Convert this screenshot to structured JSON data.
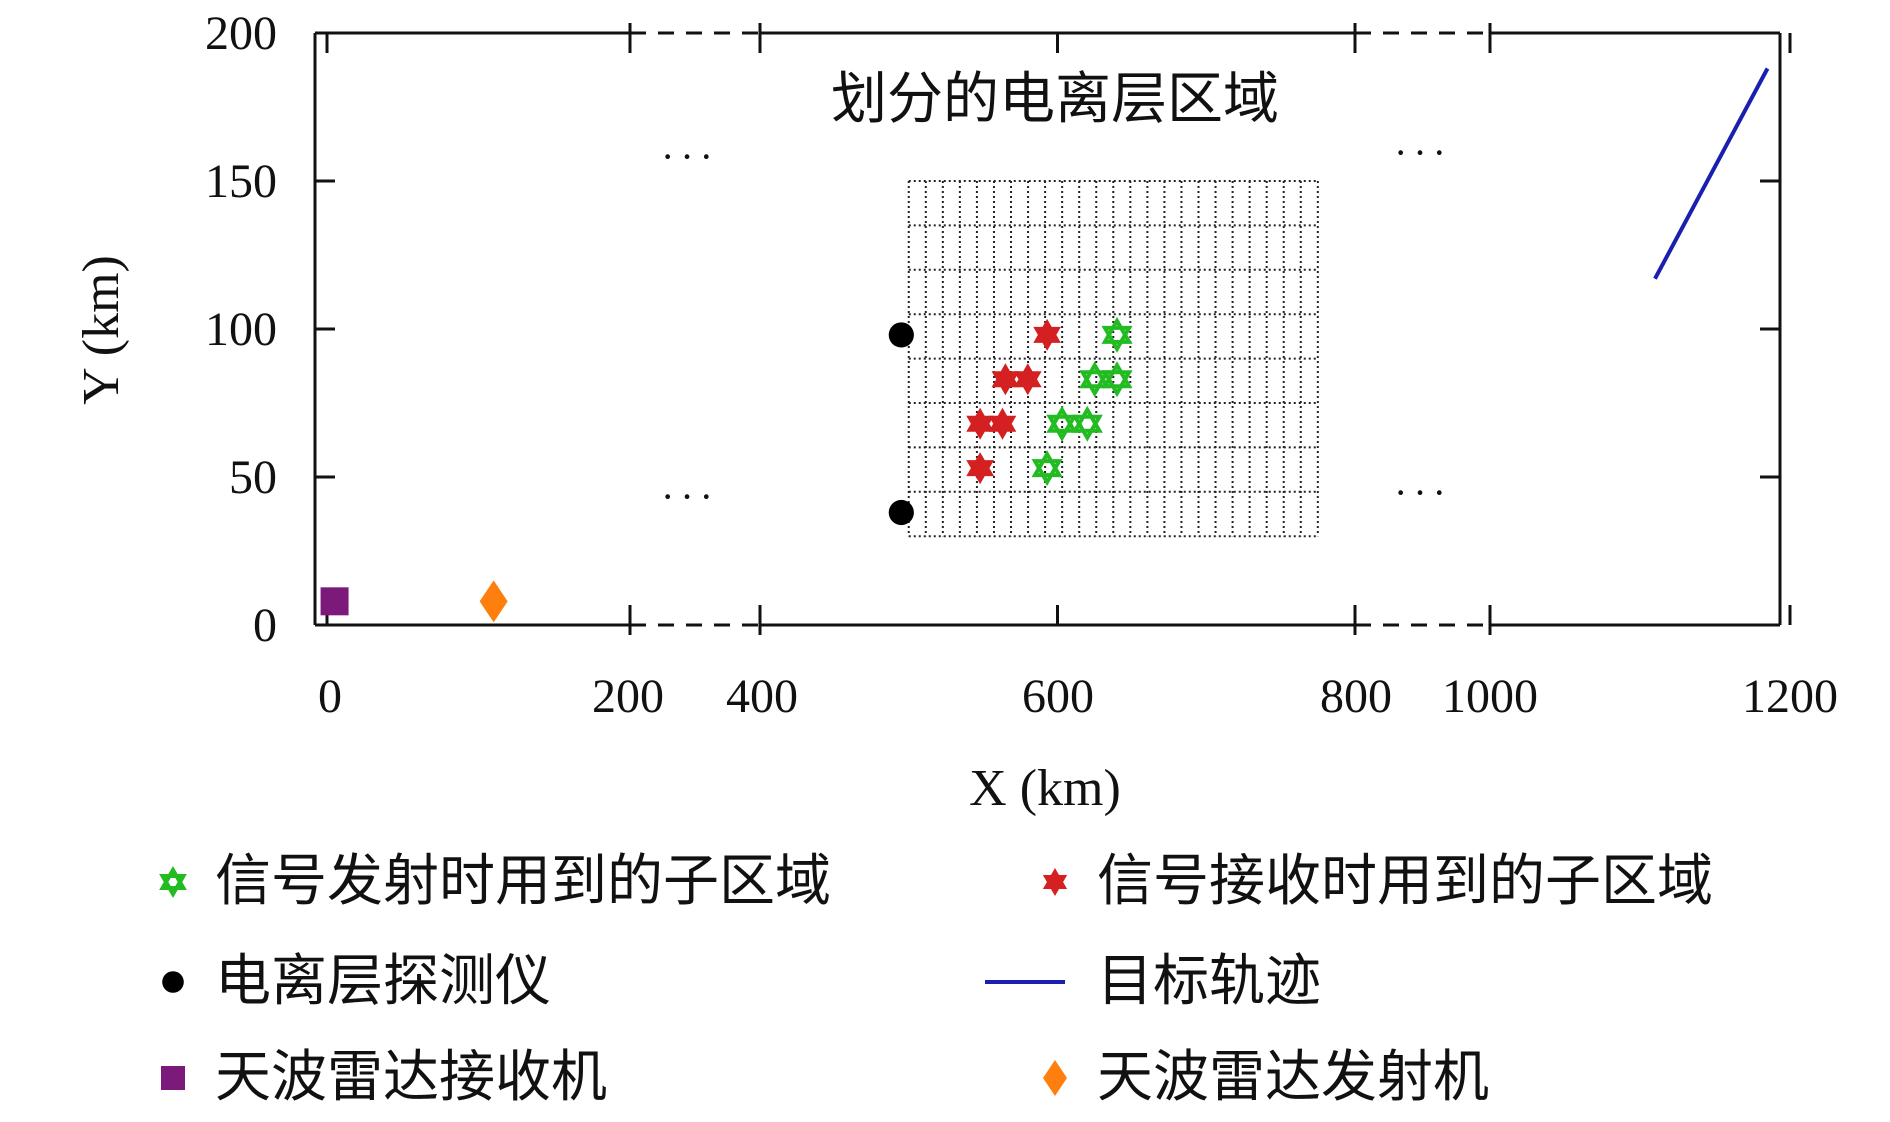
{
  "chart_data": {
    "type": "scatter",
    "title": "",
    "region_title": "划分的电离层区域",
    "xlabel": "X (km)",
    "ylabel": "Y (km)",
    "x_broken_axis": true,
    "x_tick_labels": [
      "0",
      "200",
      "400",
      "600",
      "800",
      "1000",
      "1200"
    ],
    "y_tick_labels": [
      "0",
      "50",
      "100",
      "150",
      "200"
    ],
    "ylim": [
      0,
      200
    ],
    "ellipsis": "···",
    "grid_region": {
      "x": [
        500,
        775
      ],
      "y": [
        30,
        150
      ],
      "cols": 24,
      "rows": 8
    },
    "series": [
      {
        "name": "信号发射时用到的子区域",
        "marker": "hexagram-open",
        "color": "#22bb22",
        "points": [
          [
            640,
            98
          ],
          [
            625,
            83
          ],
          [
            640,
            83
          ],
          [
            603,
            68
          ],
          [
            620,
            68
          ],
          [
            593,
            53
          ]
        ]
      },
      {
        "name": "信号接收时用到的子区域",
        "marker": "hexagram-filled",
        "color": "#d42020",
        "points": [
          [
            593,
            98
          ],
          [
            565,
            83
          ],
          [
            580,
            83
          ],
          [
            548,
            68
          ],
          [
            563,
            68
          ],
          [
            548,
            53
          ]
        ]
      },
      {
        "name": "电离层探测仪",
        "marker": "circle",
        "color": "#000000",
        "points": [
          [
            495,
            98
          ],
          [
            495,
            38
          ]
        ]
      },
      {
        "name": "目标轨迹",
        "marker": "line",
        "color": "#1a1fb0",
        "points": [
          [
            1110,
            117
          ],
          [
            1185,
            188
          ]
        ]
      },
      {
        "name": "天波雷达接收机",
        "marker": "square",
        "color": "#7b1a7b",
        "points": [
          [
            5,
            8
          ]
        ]
      },
      {
        "name": "天波雷达发射机",
        "marker": "diamond",
        "color": "#ff7f0e",
        "points": [
          [
            110,
            8
          ]
        ]
      }
    ],
    "legend_placement": "bottom"
  }
}
